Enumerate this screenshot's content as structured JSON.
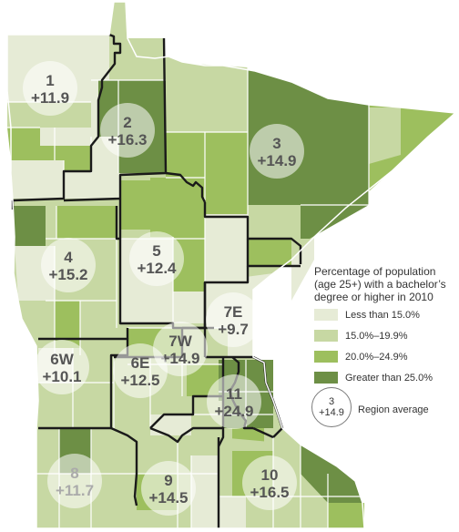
{
  "legend": {
    "title_lines": [
      "Percentage of population",
      "(age 25+) with a bachelor’s",
      "degree or higher in 2010"
    ],
    "items": [
      {
        "label": "Less than 15.0%",
        "color": "#e6ebd6"
      },
      {
        "label": "15.0%–19.9%",
        "color": "#c7d8a3"
      },
      {
        "label": "20.0%–24.9%",
        "color": "#9dbf5e"
      },
      {
        "label": "Greater than 25.0%",
        "color": "#6d8f45"
      }
    ],
    "example_region": "3",
    "example_value": "+14.9",
    "example_caption": "Region average"
  },
  "regions": [
    {
      "id": "1",
      "value": "+11.9"
    },
    {
      "id": "2",
      "value": "+16.3"
    },
    {
      "id": "3",
      "value": "+14.9"
    },
    {
      "id": "4",
      "value": "+15.2"
    },
    {
      "id": "5",
      "value": "+12.4"
    },
    {
      "id": "7E",
      "value": "+9.7"
    },
    {
      "id": "7W",
      "value": "+14.9"
    },
    {
      "id": "6W",
      "value": "+10.1"
    },
    {
      "id": "6E",
      "value": "+12.5"
    },
    {
      "id": "11",
      "value": "+24.9"
    },
    {
      "id": "8",
      "value": "+11.7"
    },
    {
      "id": "9",
      "value": "+14.5"
    },
    {
      "id": "10",
      "value": "+16.5"
    }
  ]
}
